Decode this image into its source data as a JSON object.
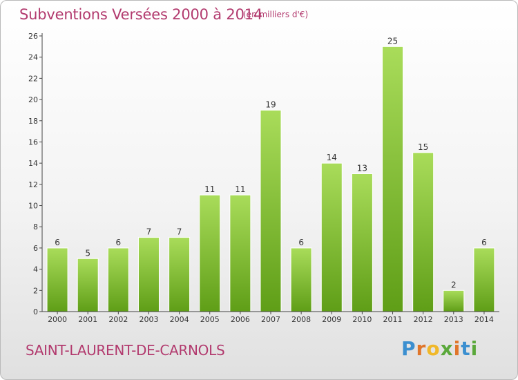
{
  "title": "Subventions Versées 2000 à 2014",
  "subtitle": "(en milliers d'€)",
  "commune": "SAINT-LAURENT-DE-CARNOLS",
  "logo": {
    "text": "Proxiti",
    "colors": [
      "#3b8fd0",
      "#e0762b",
      "#f0b82a",
      "#5aa83a",
      "#e0762b",
      "#3b8fd0",
      "#5aa83a"
    ]
  },
  "colors": {
    "title": "#b23a6e",
    "bar_light": "#a9dc5a",
    "bar_dark": "#5f9e17"
  },
  "chart_data": {
    "type": "bar",
    "title": "Subventions Versées 2000 à 2014",
    "categories": [
      "2000",
      "2001",
      "2002",
      "2003",
      "2004",
      "2005",
      "2006",
      "2007",
      "2008",
      "2009",
      "2010",
      "2011",
      "2012",
      "2013",
      "2014"
    ],
    "values": [
      6,
      5,
      6,
      7,
      7,
      11,
      11,
      19,
      6,
      14,
      13,
      25,
      15,
      2,
      6
    ],
    "ylim": [
      0,
      26
    ],
    "yticks": [
      0,
      2,
      4,
      6,
      8,
      10,
      12,
      14,
      16,
      18,
      20,
      22,
      24,
      26
    ],
    "grid": false,
    "data_labels": true
  }
}
